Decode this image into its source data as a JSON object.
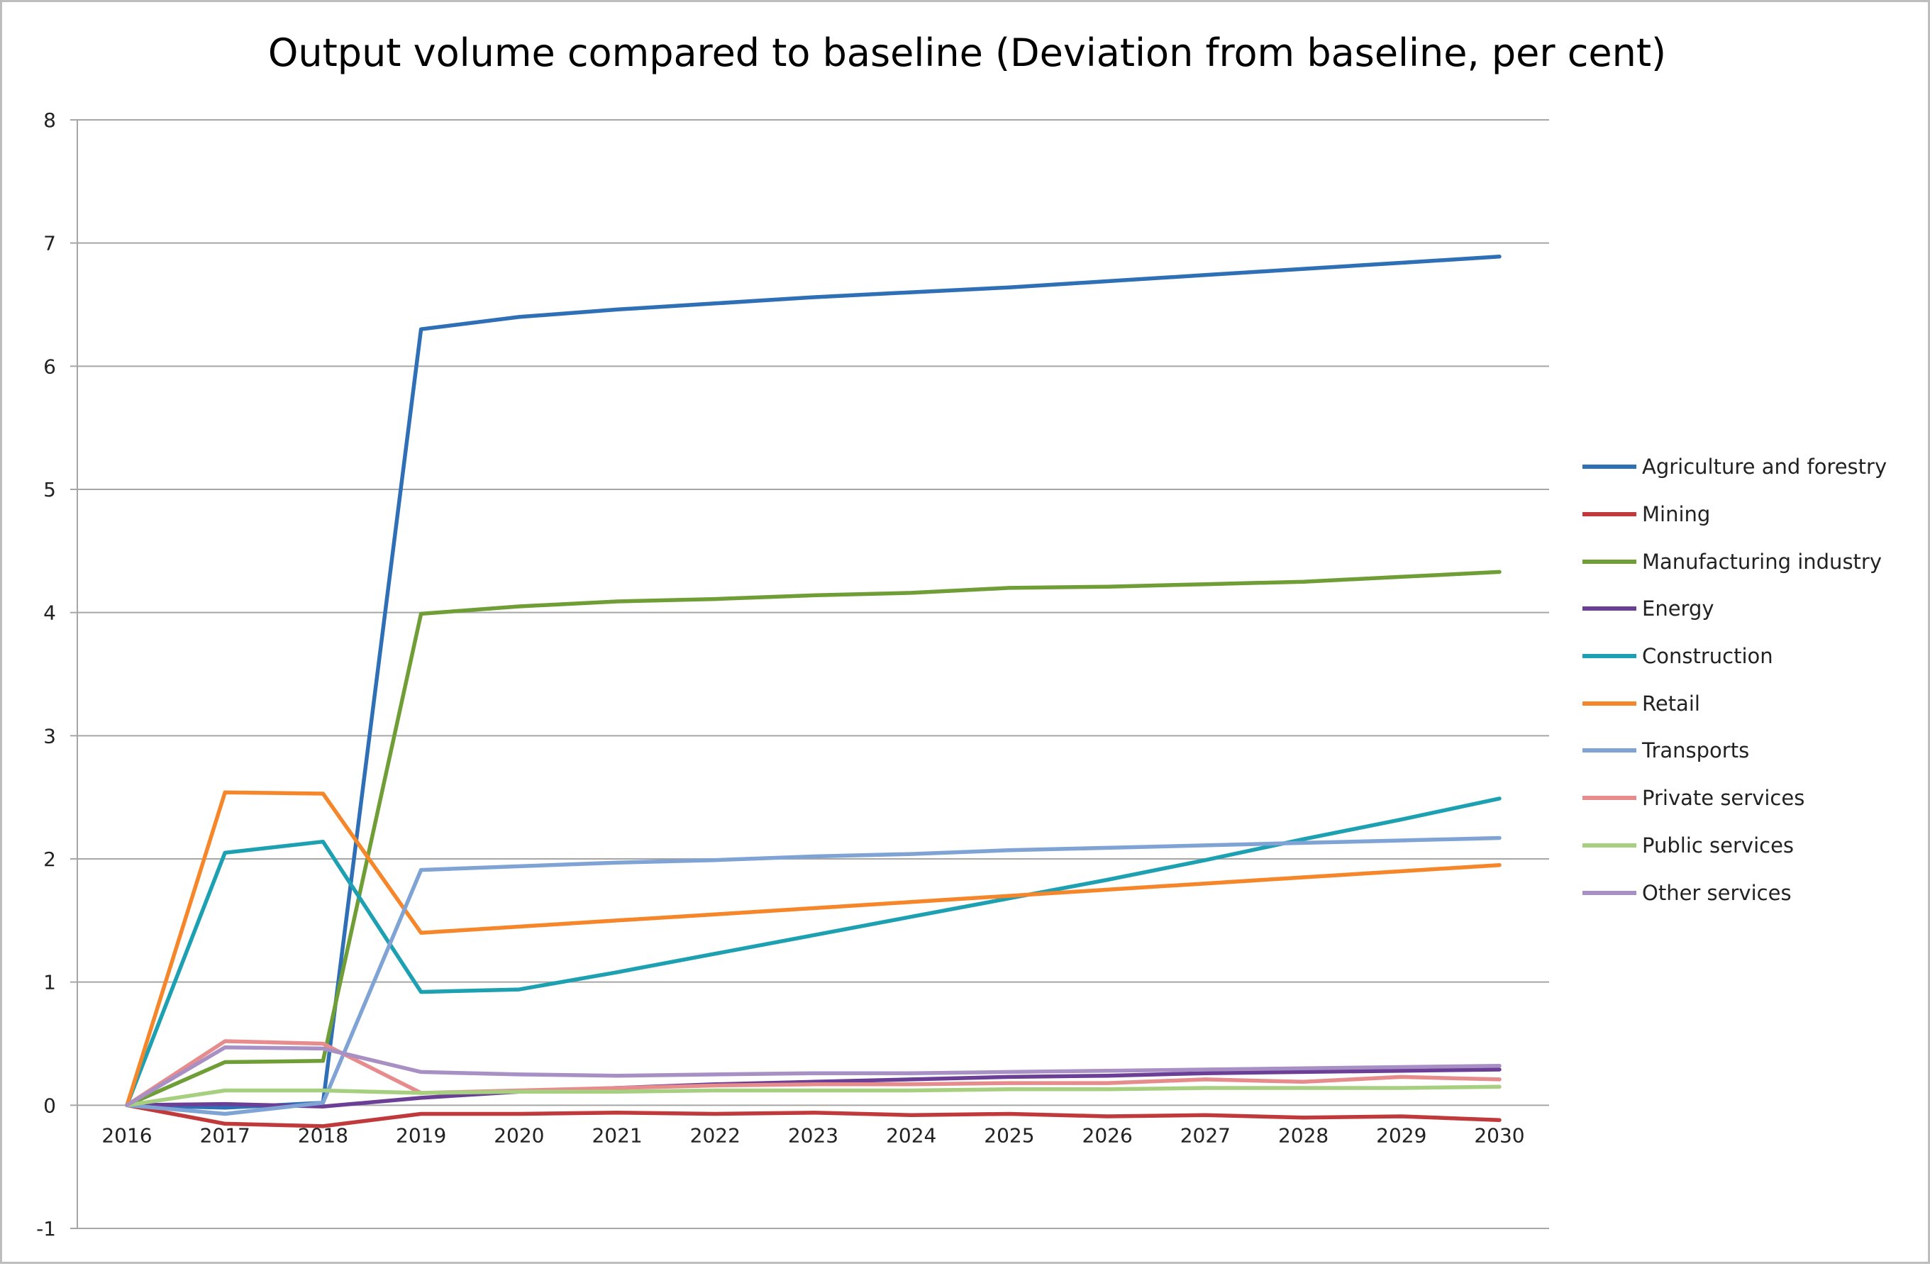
{
  "chart_data": {
    "type": "line",
    "title": "Output volume compared to baseline (Deviation from baseline, per cent)",
    "xlabel": "",
    "ylabel": "",
    "ylim": [
      -1,
      8
    ],
    "yticks": [
      -1,
      0,
      1,
      2,
      3,
      4,
      5,
      6,
      7,
      8
    ],
    "grid": true,
    "legend_position": "right",
    "categories": [
      "2016",
      "2017",
      "2018",
      "2019",
      "2020",
      "2021",
      "2022",
      "2023",
      "2024",
      "2025",
      "2026",
      "2027",
      "2028",
      "2029",
      "2030"
    ],
    "series": [
      {
        "name": "Agriculture and forestry",
        "color": "#2e6fb5",
        "values": [
          0,
          -0.02,
          0.02,
          6.3,
          6.4,
          6.46,
          6.51,
          6.56,
          6.6,
          6.64,
          6.69,
          6.74,
          6.79,
          6.84,
          6.89
        ]
      },
      {
        "name": "Mining",
        "color": "#c0393b",
        "values": [
          0,
          -0.15,
          -0.17,
          -0.07,
          -0.07,
          -0.06,
          -0.07,
          -0.06,
          -0.08,
          -0.07,
          -0.09,
          -0.08,
          -0.1,
          -0.09,
          -0.12
        ]
      },
      {
        "name": "Manufacturing industry",
        "color": "#6f9e36",
        "values": [
          0,
          0.35,
          0.36,
          3.99,
          4.05,
          4.09,
          4.11,
          4.14,
          4.16,
          4.2,
          4.21,
          4.23,
          4.25,
          4.29,
          4.33
        ]
      },
      {
        "name": "Energy",
        "color": "#6b3f96",
        "values": [
          0,
          0.01,
          -0.01,
          0.06,
          0.11,
          0.14,
          0.17,
          0.19,
          0.21,
          0.23,
          0.24,
          0.26,
          0.27,
          0.28,
          0.29
        ]
      },
      {
        "name": "Construction",
        "color": "#1ca0b2",
        "values": [
          0,
          2.05,
          2.14,
          0.92,
          0.94,
          1.08,
          1.23,
          1.38,
          1.53,
          1.68,
          1.83,
          1.99,
          2.16,
          2.32,
          2.49
        ]
      },
      {
        "name": "Retail",
        "color": "#f5862a",
        "values": [
          0,
          2.54,
          2.53,
          1.4,
          1.45,
          1.5,
          1.55,
          1.6,
          1.65,
          1.7,
          1.75,
          1.8,
          1.85,
          1.9,
          1.95
        ]
      },
      {
        "name": "Transports",
        "color": "#7ea3d4",
        "values": [
          0,
          -0.07,
          0.02,
          1.91,
          1.94,
          1.97,
          1.99,
          2.02,
          2.04,
          2.07,
          2.09,
          2.11,
          2.13,
          2.15,
          2.17
        ]
      },
      {
        "name": "Private services",
        "color": "#e68c8c",
        "values": [
          0,
          0.52,
          0.5,
          0.1,
          0.12,
          0.14,
          0.16,
          0.17,
          0.17,
          0.18,
          0.18,
          0.21,
          0.19,
          0.23,
          0.21
        ]
      },
      {
        "name": "Public services",
        "color": "#a6cf7f",
        "values": [
          0,
          0.12,
          0.12,
          0.1,
          0.11,
          0.11,
          0.12,
          0.12,
          0.12,
          0.13,
          0.13,
          0.14,
          0.14,
          0.14,
          0.15
        ]
      },
      {
        "name": "Other services",
        "color": "#a890c4",
        "values": [
          0,
          0.47,
          0.46,
          0.27,
          0.25,
          0.24,
          0.25,
          0.26,
          0.26,
          0.27,
          0.28,
          0.29,
          0.3,
          0.31,
          0.32
        ]
      }
    ]
  }
}
